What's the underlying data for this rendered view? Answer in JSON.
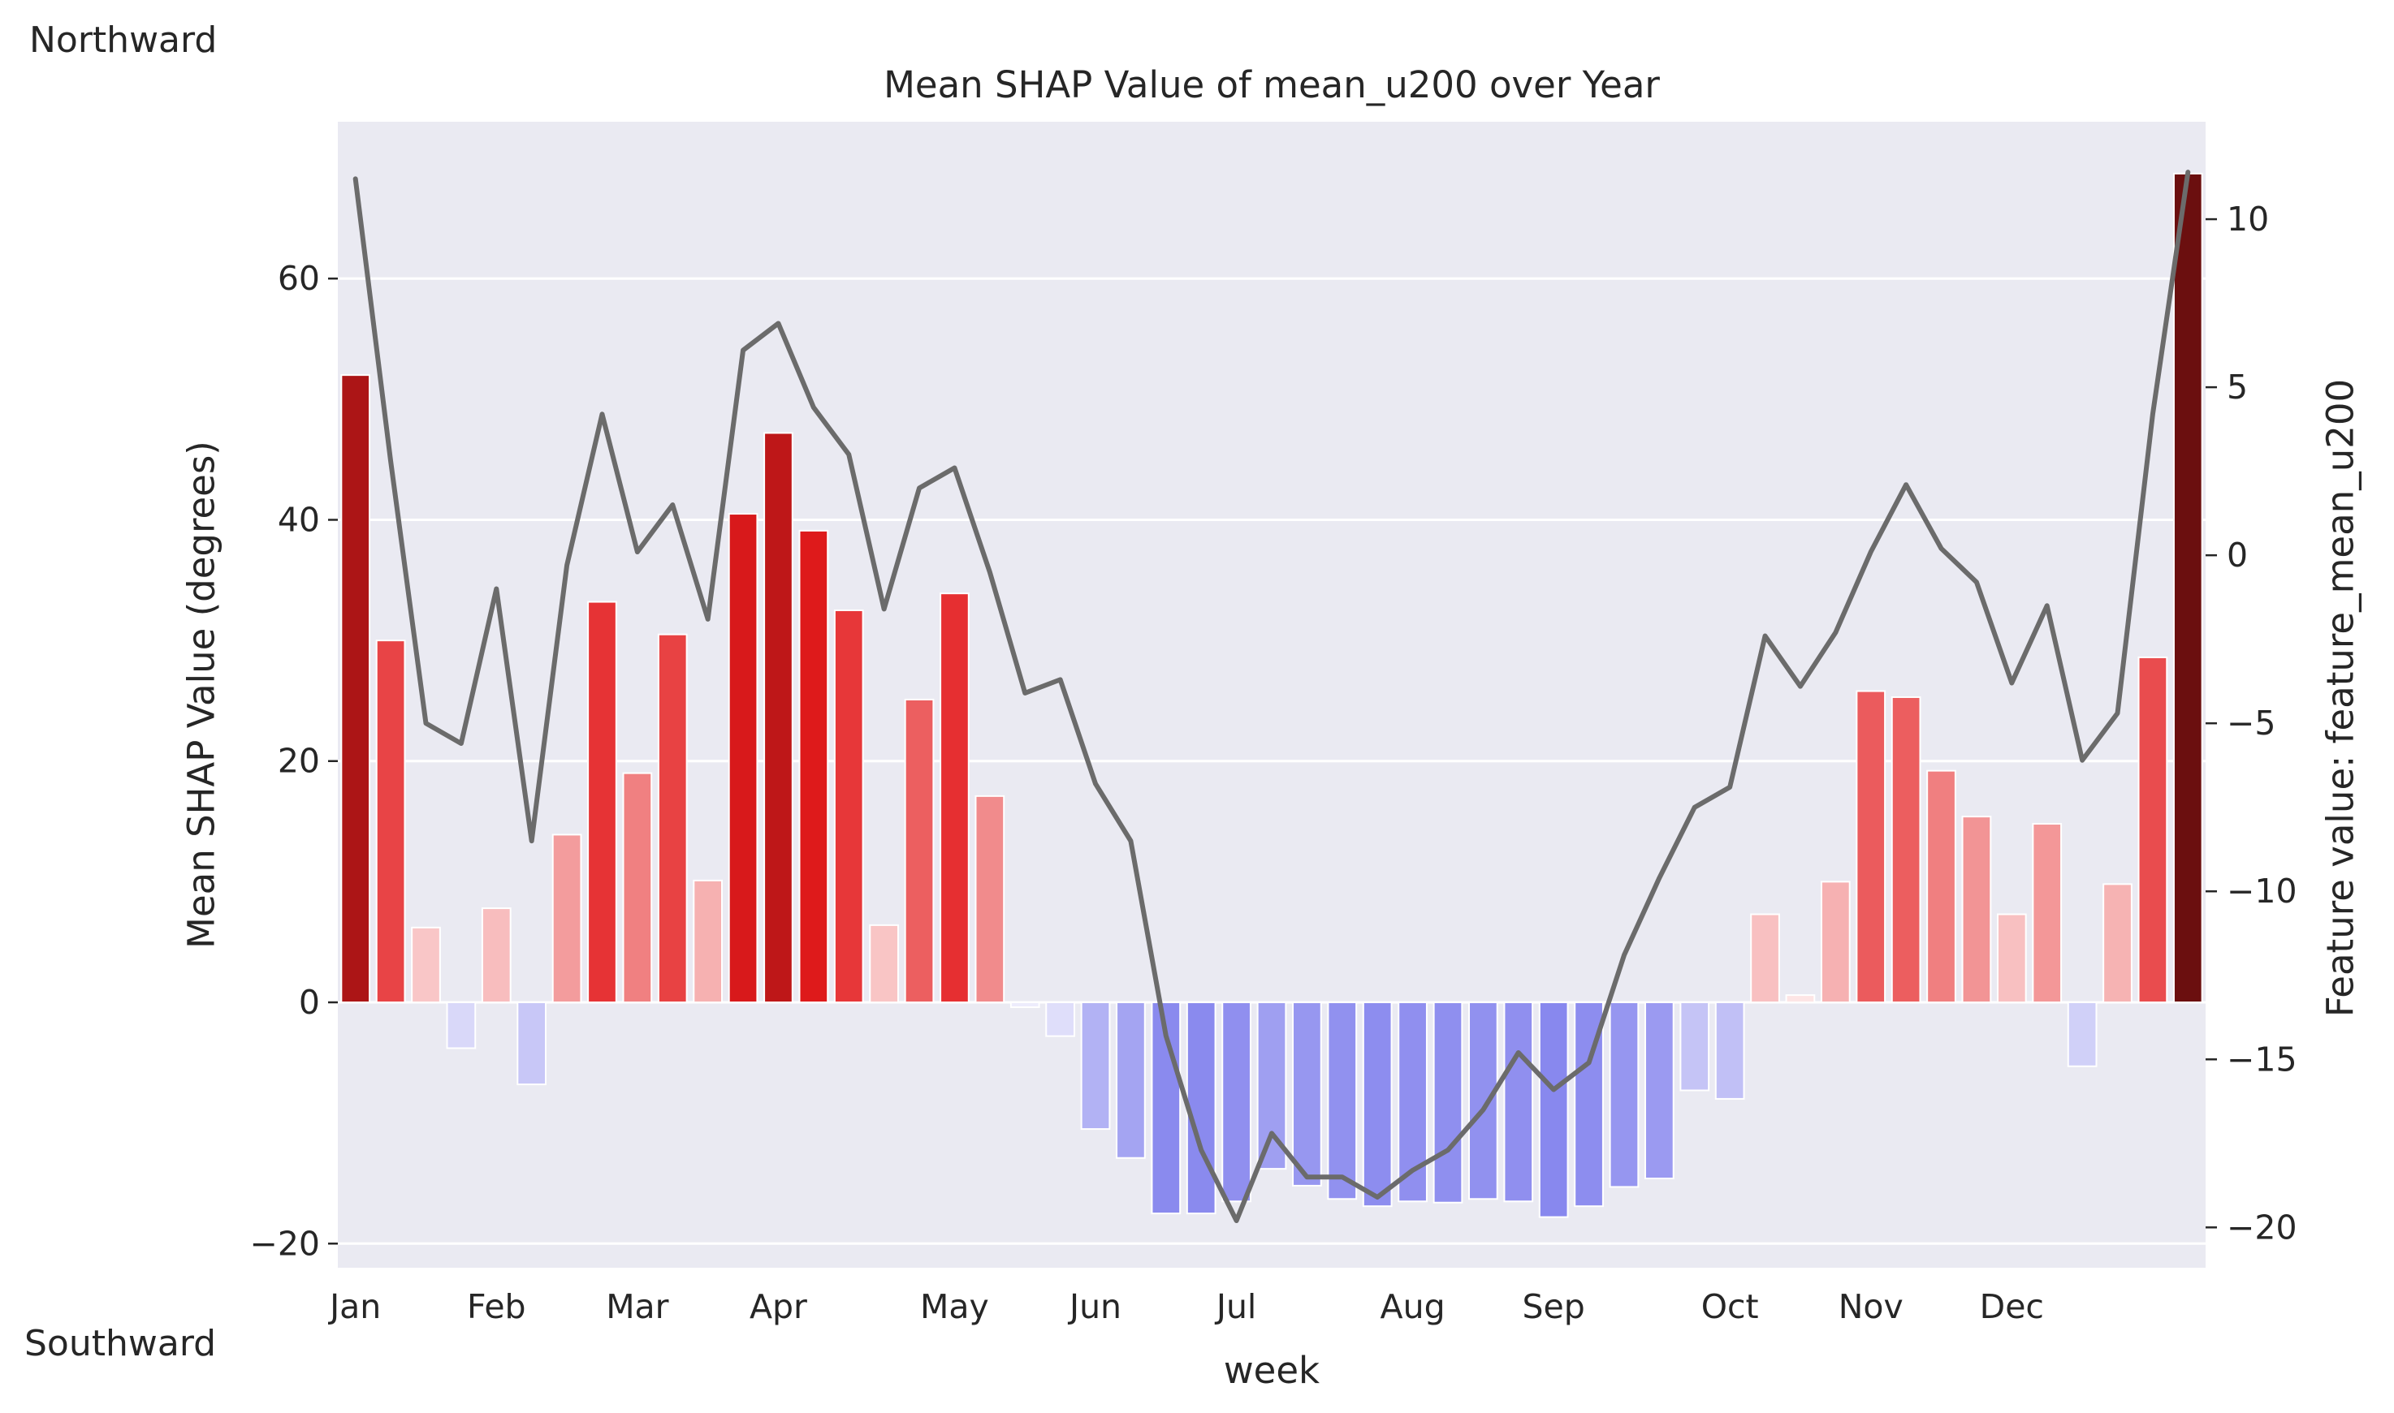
{
  "annotations": {
    "top_left": "Northward",
    "bottom_left": "Southward"
  },
  "chart_data": {
    "type": "bar",
    "title": "Mean SHAP Value of mean_u200 over Year",
    "xlabel": "week",
    "ylabel": "Mean SHAP Value (degrees)",
    "y2label": "Feature value: feature_mean_u200",
    "ylim": [
      -22,
      73
    ],
    "y2lim": [
      -21.2,
      12.9
    ],
    "yticks": [
      -20,
      0,
      20,
      40,
      60
    ],
    "yticklabels": [
      "−20",
      "0",
      "20",
      "40",
      "60"
    ],
    "y2ticks": [
      -20,
      -15,
      -10,
      -5,
      0,
      5,
      10
    ],
    "y2ticklabels": [
      "−20",
      "−15",
      "−10",
      "−5",
      "0",
      "5",
      "10"
    ],
    "grid": true,
    "month_ticks": [
      {
        "label": "Jan",
        "week": 1
      },
      {
        "label": "Feb",
        "week": 5
      },
      {
        "label": "Mar",
        "week": 9
      },
      {
        "label": "Apr",
        "week": 13
      },
      {
        "label": "May",
        "week": 18
      },
      {
        "label": "Jun",
        "week": 22
      },
      {
        "label": "Jul",
        "week": 26
      },
      {
        "label": "Aug",
        "week": 31
      },
      {
        "label": "Sep",
        "week": 35
      },
      {
        "label": "Oct",
        "week": 40
      },
      {
        "label": "Nov",
        "week": 44
      },
      {
        "label": "Dec",
        "week": 48
      }
    ],
    "weeks": [
      1,
      2,
      3,
      4,
      5,
      6,
      7,
      8,
      9,
      10,
      11,
      12,
      13,
      14,
      15,
      16,
      17,
      18,
      19,
      20,
      21,
      22,
      23,
      24,
      25,
      26,
      27,
      28,
      29,
      30,
      31,
      32,
      33,
      34,
      35,
      36,
      37,
      38,
      39,
      40,
      41,
      42,
      43,
      44,
      45,
      46,
      47,
      48,
      49,
      50,
      51,
      52,
      53
    ],
    "series": [
      {
        "kind": "bar",
        "axis": "left",
        "values": [
          52.0,
          30.0,
          6.2,
          -3.8,
          7.8,
          -6.8,
          13.9,
          33.2,
          19.0,
          30.5,
          10.1,
          40.5,
          47.2,
          39.1,
          32.5,
          6.4,
          25.1,
          33.9,
          17.1,
          -0.4,
          -2.8,
          -10.5,
          -12.9,
          -17.5,
          -17.5,
          -16.5,
          -13.8,
          -15.2,
          -16.3,
          -16.9,
          -16.5,
          -16.6,
          -16.3,
          -16.5,
          -17.8,
          -16.9,
          -15.3,
          -14.6,
          -7.3,
          -8.0,
          7.3,
          0.6,
          10.0,
          25.8,
          25.3,
          19.2,
          15.4,
          7.3,
          14.8,
          -5.3,
          9.8,
          28.6,
          68.7
        ]
      },
      {
        "kind": "line",
        "axis": "right",
        "color": "#6b6b6b",
        "values": [
          11.2,
          2.8,
          -5.0,
          -5.6,
          -1.0,
          -8.5,
          -0.3,
          4.2,
          0.1,
          1.5,
          -1.9,
          6.1,
          6.9,
          4.4,
          3.0,
          -1.6,
          2.0,
          2.6,
          -0.5,
          -4.1,
          -3.7,
          -6.8,
          -8.5,
          -14.3,
          -17.7,
          -19.8,
          -17.2,
          -18.5,
          -18.5,
          -19.1,
          -18.3,
          -17.7,
          -16.5,
          -14.8,
          -15.9,
          -15.1,
          -11.9,
          -9.6,
          -7.5,
          -6.9,
          -2.4,
          -3.9,
          -2.3,
          0.1,
          2.1,
          0.2,
          -0.8,
          -3.8,
          -1.5,
          -6.1,
          -4.7,
          4.2,
          11.4
        ]
      }
    ],
    "colors": {
      "background": "#eaeaf2",
      "grid": "#ffffff",
      "line": "#6b6b6b",
      "positive_scale": [
        "#fde8e8",
        "#e31a1c",
        "#6b0f0f"
      ],
      "negative_scale": [
        "#efeefc",
        "#8888ee"
      ]
    }
  }
}
